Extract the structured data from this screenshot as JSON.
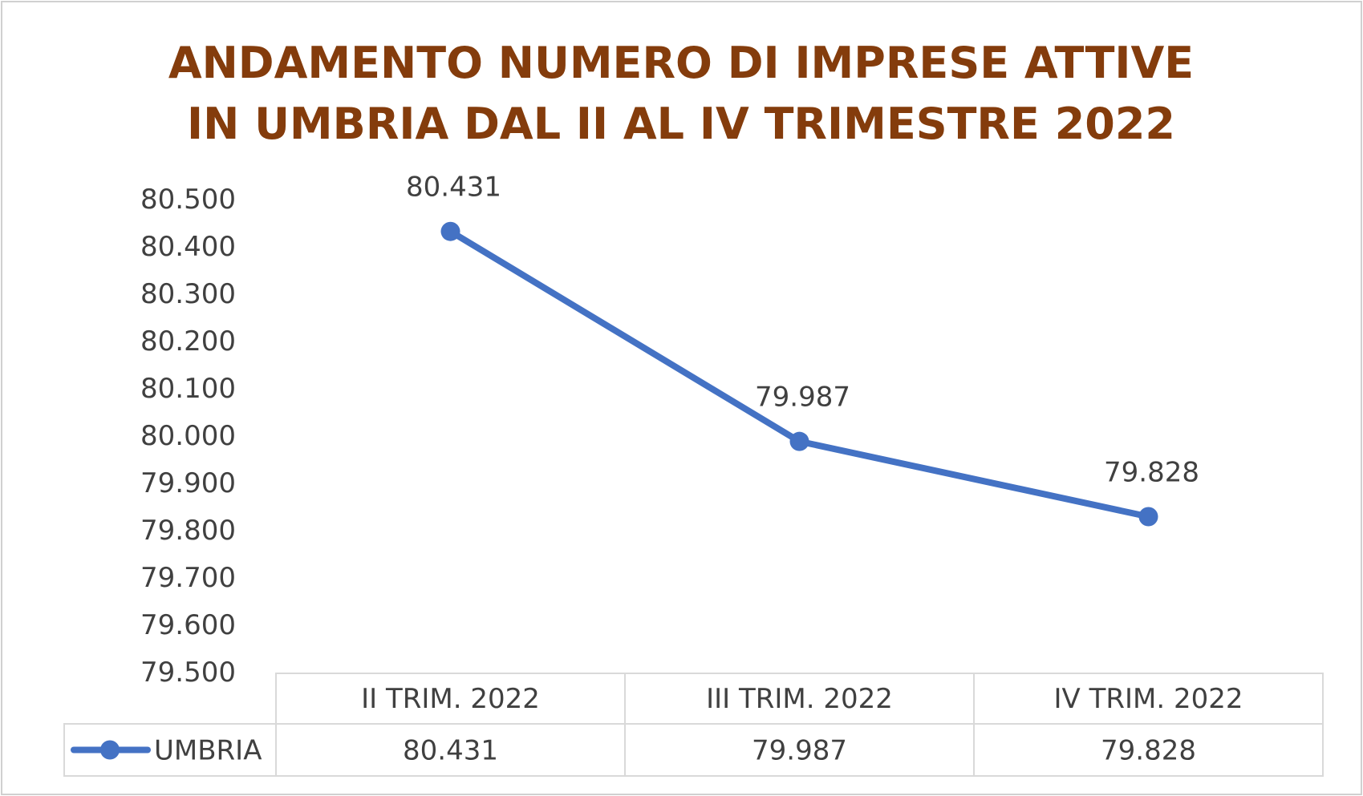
{
  "chart_data": {
    "type": "line",
    "title_lines": [
      "ANDAMENTO NUMERO DI IMPRESE ATTIVE",
      "IN UMBRIA DAL II AL IV TRIMESTRE 2022"
    ],
    "categories": [
      "II TRIM. 2022",
      "III TRIM. 2022",
      "IV TRIM. 2022"
    ],
    "series": [
      {
        "name": "UMBRIA",
        "values": [
          80431,
          79987,
          79828
        ],
        "labels": [
          "80.431",
          "79.987",
          "79.828"
        ],
        "color": "#4472c4"
      }
    ],
    "ylim": [
      79500,
      80500
    ],
    "y_ticks": [
      "80.500",
      "80.400",
      "80.300",
      "80.200",
      "80.100",
      "80.000",
      "79.900",
      "79.800",
      "79.700",
      "79.600",
      "79.500"
    ],
    "gridlines": false,
    "data_table": true,
    "title_color": "#843c0c",
    "text_color": "#404040"
  }
}
